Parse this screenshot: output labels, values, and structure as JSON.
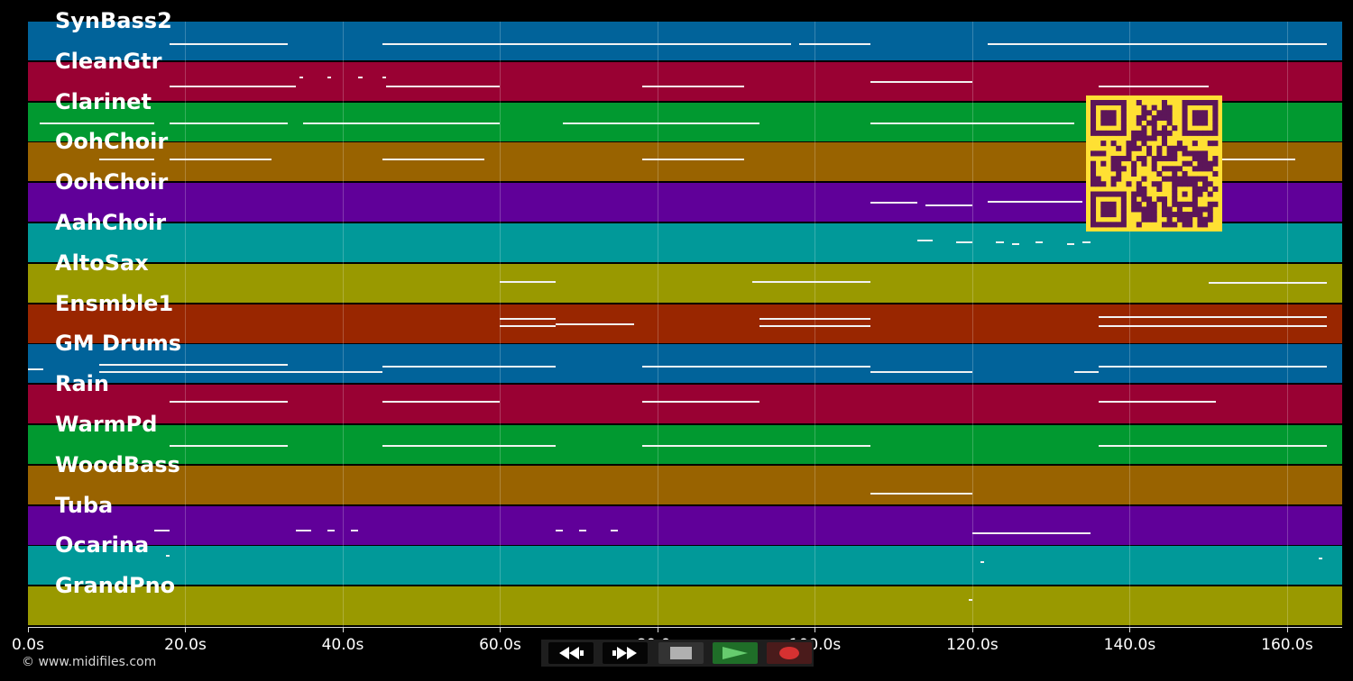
{
  "tracks": [
    {
      "name": "SynBass2",
      "color": "#01639a",
      "notes": [
        [
          18,
          33,
          0.56
        ],
        [
          45,
          97,
          0.56
        ],
        [
          98,
          107,
          0.56
        ],
        [
          122,
          165,
          0.56
        ]
      ]
    },
    {
      "name": "CleanGtr",
      "color": "#990133",
      "notes": [
        [
          18,
          34,
          0.62
        ],
        [
          34.5,
          35,
          0.38
        ],
        [
          38,
          38.5,
          0.38
        ],
        [
          42,
          42.5,
          0.38
        ],
        [
          45,
          45.5,
          0.38
        ],
        [
          45.5,
          60,
          0.62
        ],
        [
          78,
          91,
          0.62
        ],
        [
          107,
          120,
          0.5
        ],
        [
          136,
          150,
          0.62
        ]
      ]
    },
    {
      "name": "Clarinet",
      "color": "#019930",
      "notes": [
        [
          1.5,
          16,
          0.52
        ],
        [
          18,
          33,
          0.52
        ],
        [
          35,
          60,
          0.52
        ],
        [
          68,
          93,
          0.52
        ],
        [
          107,
          133,
          0.52
        ]
      ]
    },
    {
      "name": "OohChoir",
      "color": "#996300",
      "notes": [
        [
          9,
          16,
          0.42
        ],
        [
          18,
          31,
          0.42
        ],
        [
          45,
          58,
          0.42
        ],
        [
          78,
          91,
          0.42
        ],
        [
          137,
          161,
          0.42
        ]
      ]
    },
    {
      "name": "OohChoir",
      "color": "#600099",
      "notes": [
        [
          107,
          113,
          0.48
        ],
        [
          114,
          120,
          0.55
        ],
        [
          122,
          134,
          0.45
        ]
      ]
    },
    {
      "name": "AahChoir",
      "color": "#019999",
      "notes": [
        [
          113,
          115,
          0.42
        ],
        [
          118,
          120,
          0.46
        ],
        [
          123,
          124,
          0.46
        ],
        [
          125,
          126,
          0.5
        ],
        [
          128,
          129,
          0.46
        ],
        [
          132,
          133,
          0.5
        ],
        [
          134,
          135,
          0.46
        ]
      ]
    },
    {
      "name": "AltoSax",
      "color": "#999900",
      "notes": [
        [
          60,
          67,
          0.45
        ],
        [
          92,
          107,
          0.45
        ],
        [
          150,
          165,
          0.48
        ]
      ]
    },
    {
      "name": "Ensmble1",
      "color": "#992600",
      "notes": [
        [
          60,
          67,
          0.35
        ],
        [
          60,
          67,
          0.55
        ],
        [
          67,
          77,
          0.5
        ],
        [
          93,
          107,
          0.35
        ],
        [
          93,
          107,
          0.55
        ],
        [
          136,
          165,
          0.32
        ],
        [
          136,
          165,
          0.55
        ]
      ]
    },
    {
      "name": "GM Drums",
      "color": "#01639a",
      "notes": [
        [
          0,
          2,
          0.62
        ],
        [
          9,
          33,
          0.5
        ],
        [
          9,
          33,
          0.68
        ],
        [
          33,
          45,
          0.68
        ],
        [
          45,
          67,
          0.55
        ],
        [
          78,
          107,
          0.55
        ],
        [
          107,
          120,
          0.68
        ],
        [
          133,
          136,
          0.68
        ],
        [
          136,
          165,
          0.55
        ]
      ]
    },
    {
      "name": "Rain",
      "color": "#990133",
      "notes": [
        [
          18,
          33,
          0.42
        ],
        [
          45,
          60,
          0.42
        ],
        [
          78,
          93,
          0.42
        ],
        [
          136,
          151,
          0.42
        ]
      ]
    },
    {
      "name": "WarmPd",
      "color": "#019930",
      "notes": [
        [
          18,
          33,
          0.52
        ],
        [
          45,
          67,
          0.52
        ],
        [
          78,
          107,
          0.52
        ],
        [
          136,
          165,
          0.52
        ]
      ]
    },
    {
      "name": "WoodBass",
      "color": "#996300",
      "notes": [
        [
          107,
          120,
          0.7
        ]
      ]
    },
    {
      "name": "Tuba",
      "color": "#600099",
      "notes": [
        [
          16,
          18,
          0.62
        ],
        [
          34,
          36,
          0.62
        ],
        [
          38,
          39,
          0.62
        ],
        [
          41,
          42,
          0.62
        ],
        [
          67,
          68,
          0.62
        ],
        [
          70,
          71,
          0.62
        ],
        [
          74,
          75,
          0.62
        ],
        [
          120,
          135,
          0.68
        ]
      ]
    },
    {
      "name": "Ocarina",
      "color": "#019999",
      "notes": [
        [
          17.5,
          18,
          0.22
        ],
        [
          121,
          121.5,
          0.38
        ],
        [
          164,
          164.5,
          0.3
        ]
      ]
    },
    {
      "name": "GrandPno",
      "color": "#999900",
      "notes": [
        [
          119.5,
          120,
          0.32
        ]
      ]
    }
  ],
  "axis": {
    "min": 0,
    "max": 167,
    "ticks": [
      {
        "value": 0,
        "label": "0.0s"
      },
      {
        "value": 20,
        "label": "20.0s"
      },
      {
        "value": 40,
        "label": "40.0s"
      },
      {
        "value": 60,
        "label": "60.0s"
      },
      {
        "value": 80,
        "label": "80.0s"
      },
      {
        "value": 100,
        "label": "100.0s"
      },
      {
        "value": 120,
        "label": "120.0s"
      },
      {
        "value": 140,
        "label": "140.0s"
      },
      {
        "value": 160,
        "label": "160.0s"
      }
    ]
  },
  "controls": [
    {
      "name": "rewind-button",
      "icon": "rewind-icon",
      "bg": "#050505"
    },
    {
      "name": "fast-forward-button",
      "icon": "fast-forward-icon",
      "bg": "#050505"
    },
    {
      "name": "stop-button",
      "icon": "stop-icon",
      "bg": "#333333"
    },
    {
      "name": "play-button",
      "icon": "play-icon",
      "bg": "#1f6e28"
    },
    {
      "name": "record-button",
      "icon": "record-icon",
      "bg": "#4a1b1b"
    }
  ],
  "qr_code": {
    "fg": "#5c1659",
    "bg": "#ffe033"
  },
  "copyright": "© www.midifiles.com"
}
